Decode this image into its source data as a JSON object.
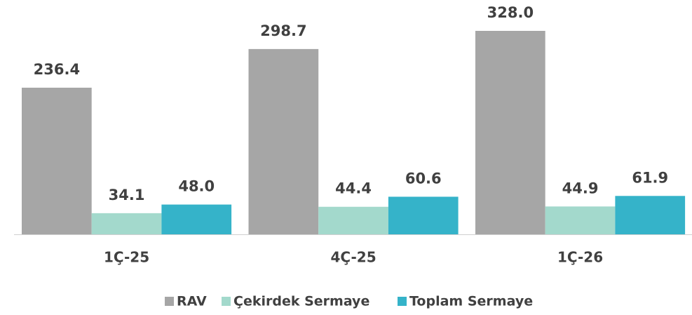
{
  "chart_data": {
    "type": "bar",
    "categories": [
      "1Ç-25",
      "4Ç-25",
      "1Ç-26"
    ],
    "series": [
      {
        "name": "RAV",
        "color": "#a6a6a6",
        "values": [
          236.4,
          298.7,
          328.0
        ],
        "value_labels": [
          "236.4",
          "298.7",
          "328.0"
        ]
      },
      {
        "name": "Çekirdek Sermaye",
        "color": "#a3d9cc",
        "values": [
          34.1,
          44.4,
          44.9
        ],
        "value_labels": [
          "34.1",
          "44.4",
          "44.9"
        ]
      },
      {
        "name": "Toplam Sermaye",
        "color": "#35b3c9",
        "values": [
          48.0,
          60.6,
          61.9
        ],
        "value_labels": [
          "48.0",
          "60.6",
          "61.9"
        ]
      }
    ],
    "legend": "bottom"
  }
}
